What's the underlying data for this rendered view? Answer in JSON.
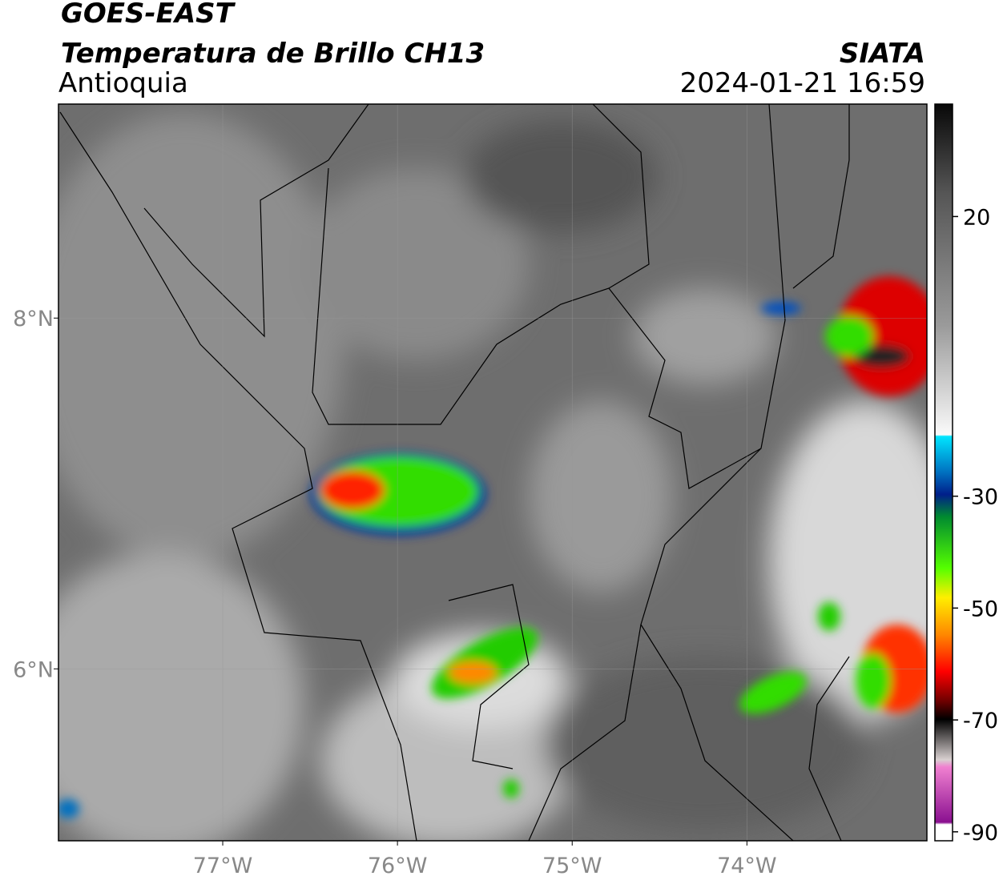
{
  "header": {
    "title": "GOES-EAST",
    "subtitle": "Temperatura de Brillo CH13",
    "region": "Antioquia",
    "source": "SIATA",
    "timestamp": "2024-01-21 16:59"
  },
  "map": {
    "lon_range": [
      -77.94,
      -72.97
    ],
    "lat_range": [
      5.02,
      9.22
    ],
    "lon_ticks": [
      {
        "value": -77,
        "label": "77°W"
      },
      {
        "value": -76,
        "label": "76°W"
      },
      {
        "value": -75,
        "label": "75°W"
      },
      {
        "value": -74,
        "label": "74°W"
      }
    ],
    "lat_ticks": [
      {
        "value": 8,
        "label": "8°N"
      },
      {
        "value": 6,
        "label": "6°N"
      }
    ],
    "grid": true
  },
  "colorbar": {
    "range": [
      -91.6,
      40.1
    ],
    "ticks": [
      20,
      -30,
      -50,
      -70,
      -90
    ]
  }
}
